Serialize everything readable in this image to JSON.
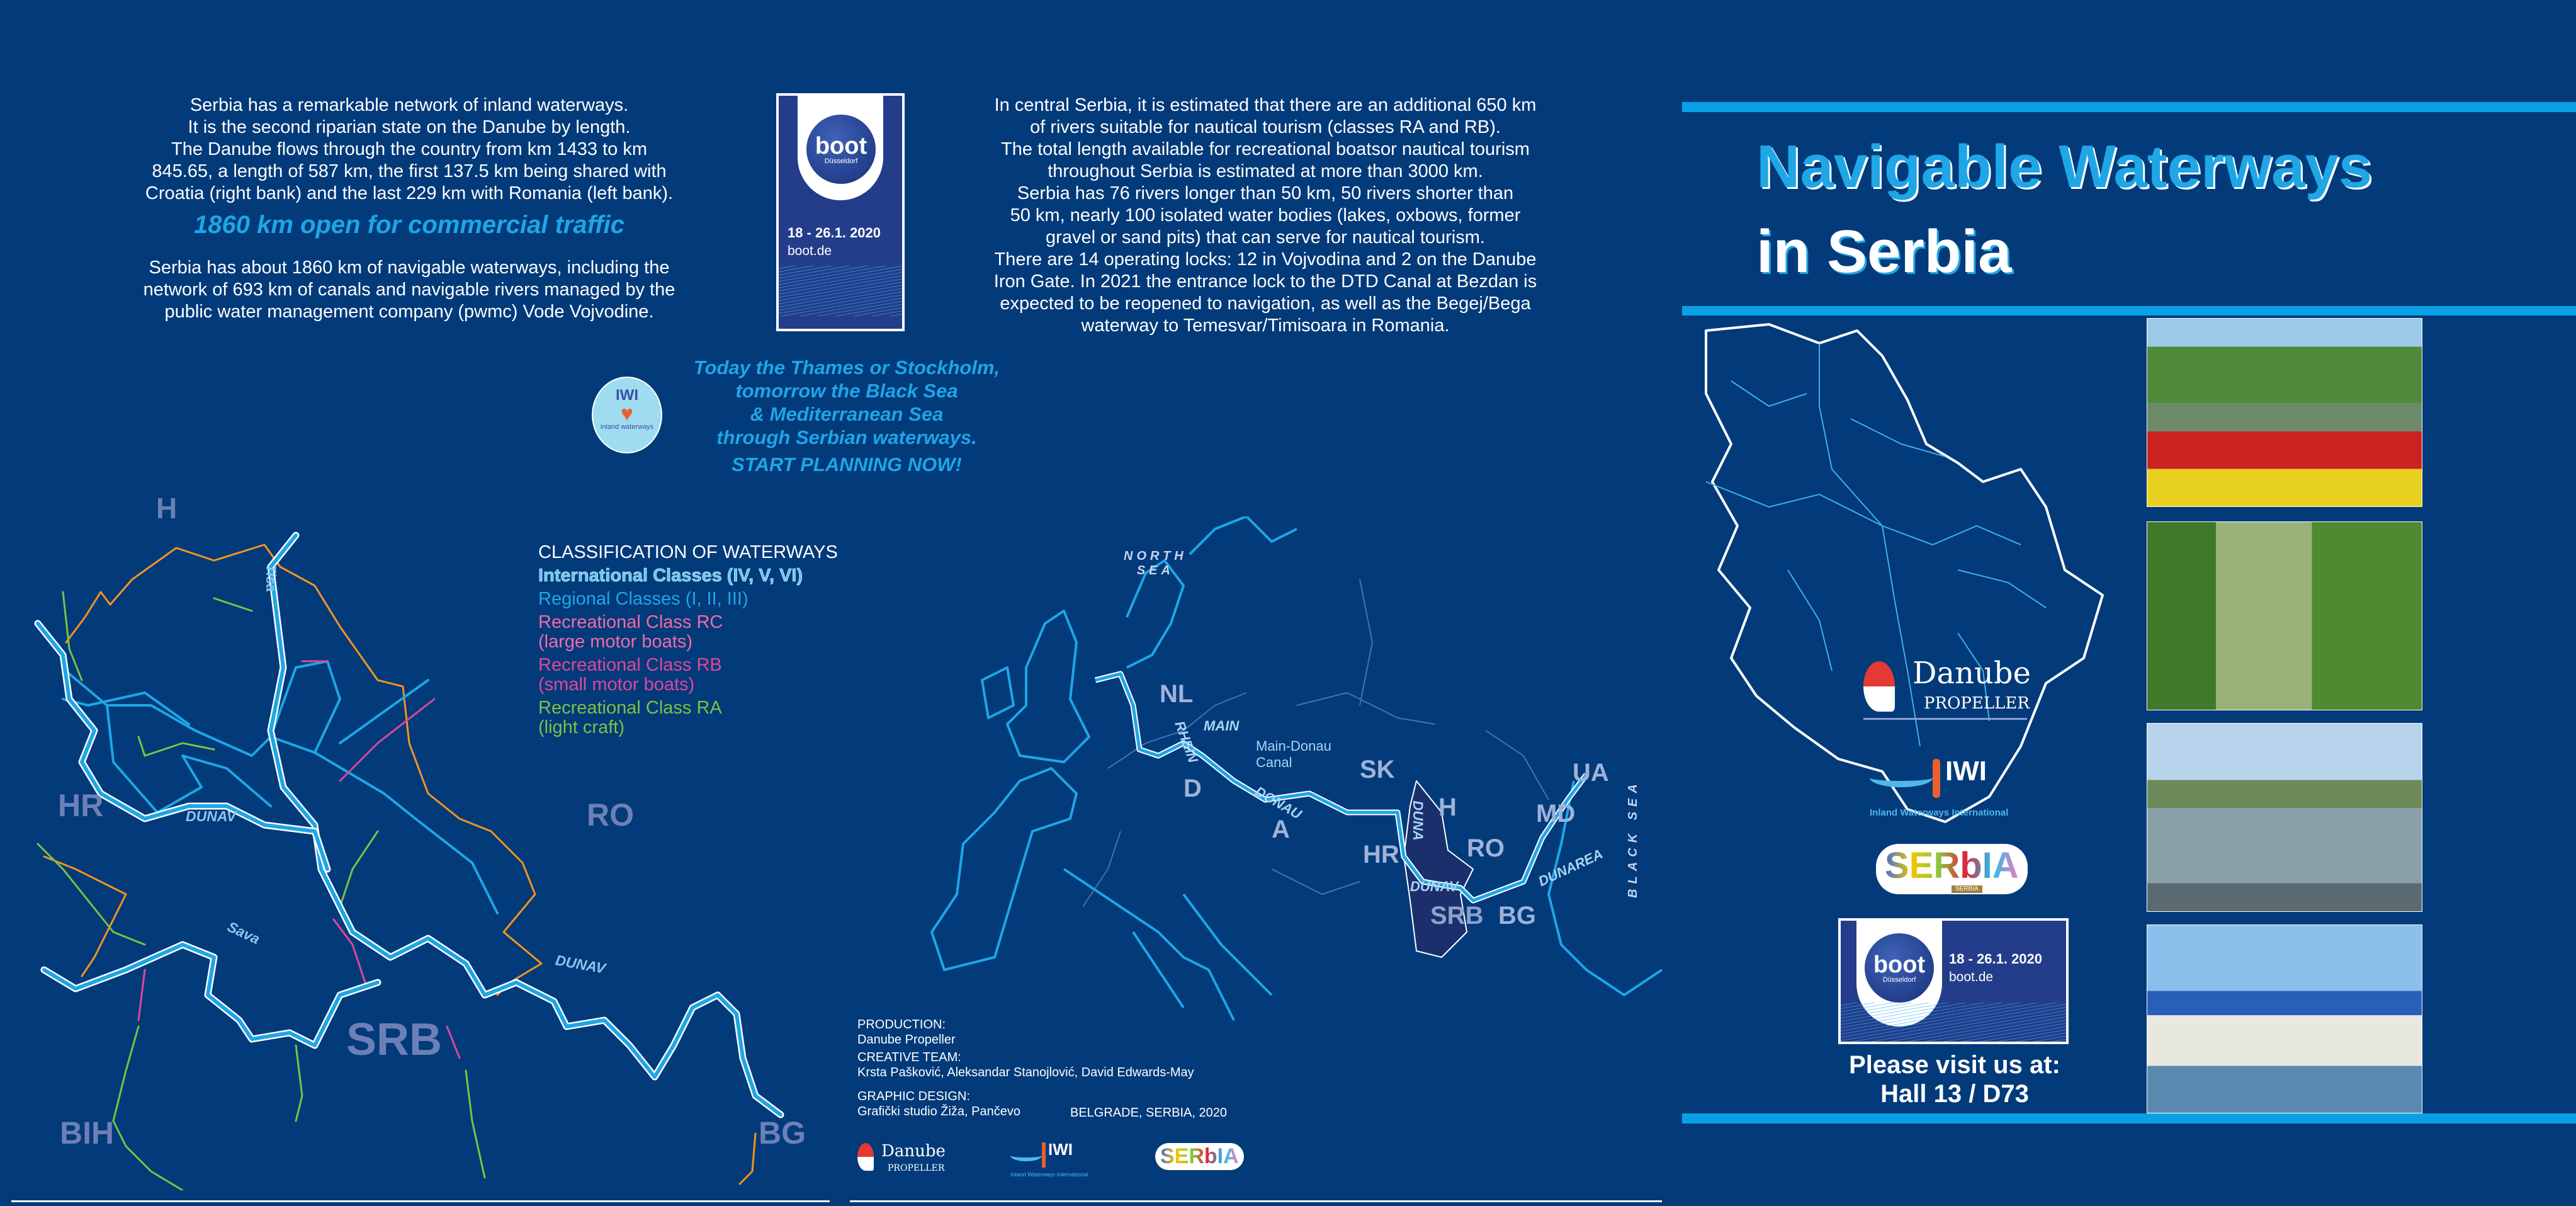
{
  "colors": {
    "background": "#023a7a",
    "accent": "#1ea6e6",
    "international": "#5cc8f5",
    "regional": "#1ea6e6",
    "rc": "#f06aa8",
    "rb": "#e0479a",
    "ra": "#7cc242",
    "border": "#f7941d"
  },
  "left_intro": {
    "lines": [
      "Serbia has a remarkable network of inland waterways.",
      "It is the second riparian state on the Danube by length.",
      "The Danube flows through the country from km 1433 to km",
      "845.65, a length of 587 km, the first 137.5 km being shared with",
      "Croatia (right bank) and the last 229 km with Romania (left bank)."
    ],
    "highlight": "1860 km open for commercial traffic",
    "lines2": [
      "Serbia has about 1860 km of navigable waterways, including the",
      "network of 693 km of canals and navigable rivers managed by the",
      "public water management company (pwmc) Vode Vojvodine."
    ]
  },
  "boot_vertical": {
    "word": "boot",
    "city": "Düsseldorf",
    "dates": "18 - 26.1. 2020",
    "site": "boot.de"
  },
  "right_intro": {
    "lines": [
      "In central Serbia, it is estimated that there are an additional 650 km",
      "of rivers suitable for nautical tourism (classes RA and RB).",
      "The total length available for recreational boatsor nautical tourism",
      "throughout Serbia is estimated at more than 3000 km.",
      "Serbia has 76 rivers longer than 50 km, 50 rivers shorter than",
      "50 km, nearly 100 isolated water bodies (lakes, oxbows, former",
      "gravel or sand pits) that can serve for nautical tourism.",
      "There are 14 operating locks: 12 in Vojvodina and 2 on the Danube",
      "Iron Gate. In 2021 the entrance lock to the DTD Canal at Bezdan is",
      "expected to be reopened to navigation, as well as the Begej/Bega",
      "waterway to Temesvar/Timisoara in Romania."
    ]
  },
  "iwi_badge": {
    "top": "IWI",
    "ring": "inland waterways"
  },
  "tagline": {
    "lines": [
      "Today the Thames or Stockholm,",
      "tomorrow the Black Sea",
      "& Mediterranean Sea",
      "through Serbian waterways."
    ],
    "cta": "START PLANNING NOW!"
  },
  "legend": {
    "title": "CLASSIFICATION OF WATERWAYS",
    "international": "International Classes (IV, V, VI)",
    "regional": "Regional Classes (I, II, III)",
    "rc": [
      "Recreational Class RC",
      "(large motor boats)"
    ],
    "rb": [
      "Recreational Class RB",
      "(small motor boats)"
    ],
    "ra": [
      "Recreational Class RA",
      "(light craft)"
    ]
  },
  "serbia_map": {
    "countries": [
      "H",
      "HR",
      "RO",
      "SRB",
      "BIH",
      "BG"
    ],
    "rivers": [
      "Tisa",
      "DUNAV",
      "Sava",
      "DUNAV"
    ]
  },
  "europe_map": {
    "seas": [
      "NORTH",
      "SEA",
      "BLACK SEA"
    ],
    "countries": [
      "NL",
      "D",
      "A",
      "SK",
      "H",
      "HR",
      "RO",
      "MD",
      "UA",
      "BG",
      "SRB"
    ],
    "rivers": [
      "RHEIN",
      "MAIN",
      "Main-Donau",
      "Canal",
      "DONAU",
      "DUNA",
      "DUNAV",
      "DUNAREA"
    ]
  },
  "credits": {
    "production_label": "PRODUCTION:",
    "production": "Danube Propeller",
    "team_label": "CREATIVE TEAM:",
    "team": "Krsta Pašković, Aleksandar Stanojlović, David Edwards-May",
    "design_label": "GRAPHIC DESIGN:",
    "design": "Grafički studio Žiža, Pančevo",
    "place": "BELGRADE, SERBIA, 2020"
  },
  "logos": {
    "danube_1": "Danube",
    "danube_2": "PROPELLER",
    "iwi": "IWI",
    "iwi_full": "Inland Waterways International",
    "serbia": "SERbIA",
    "serbia_sub": "SERBIA"
  },
  "cover": {
    "title_1": "Navigable Waterways",
    "title_2": "in Serbia",
    "visit_1": "Please visit us at:",
    "visit_2": "Hall 13 / D73"
  },
  "boot_horizontal": {
    "word": "boot",
    "city": "Düsseldorf",
    "dates": "18 - 26.1. 2020",
    "site": "boot.de"
  }
}
